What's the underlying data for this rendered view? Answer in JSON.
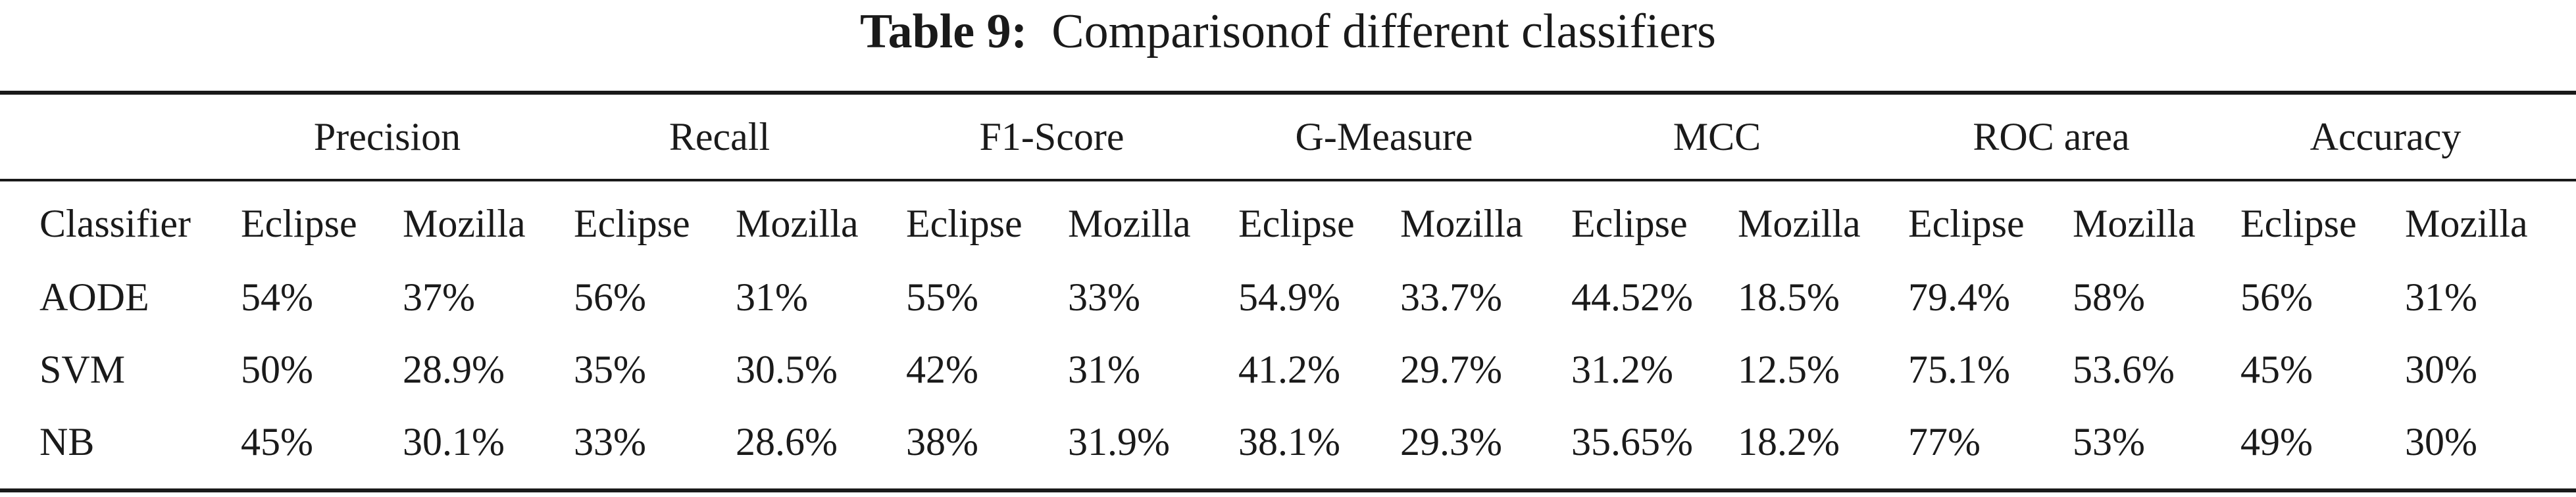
{
  "caption": {
    "label": "Table 9:",
    "text": "Comparisonof different classifiers"
  },
  "table": {
    "group_headers": [
      "Precision",
      "Recall",
      "F1-Score",
      "G-Measure",
      "MCC",
      "ROC area",
      "Accuracy"
    ],
    "subheaders": [
      "Classifier",
      "Eclipse",
      "Mozilla",
      "Eclipse",
      "Mozilla",
      "Eclipse",
      "Mozilla",
      "Eclipse",
      "Mozilla",
      "Eclipse",
      "Mozilla",
      "Eclipse",
      "Mozilla",
      "Eclipse",
      "Mozilla"
    ],
    "rows": [
      [
        "AODE",
        "54%",
        "37%",
        "56%",
        "31%",
        "55%",
        "33%",
        "54.9%",
        "33.7%",
        "44.52%",
        "18.5%",
        "79.4%",
        "58%",
        "56%",
        "31%"
      ],
      [
        "SVM",
        "50%",
        "28.9%",
        "35%",
        "30.5%",
        "42%",
        "31%",
        "41.2%",
        "29.7%",
        "31.2%",
        "12.5%",
        "75.1%",
        "53.6%",
        "45%",
        "30%"
      ],
      [
        "NB",
        "45%",
        "30.1%",
        "33%",
        "28.6%",
        "38%",
        "31.9%",
        "38.1%",
        "29.3%",
        "35.65%",
        "18.2%",
        "77%",
        "53%",
        "49%",
        "30%"
      ]
    ]
  }
}
